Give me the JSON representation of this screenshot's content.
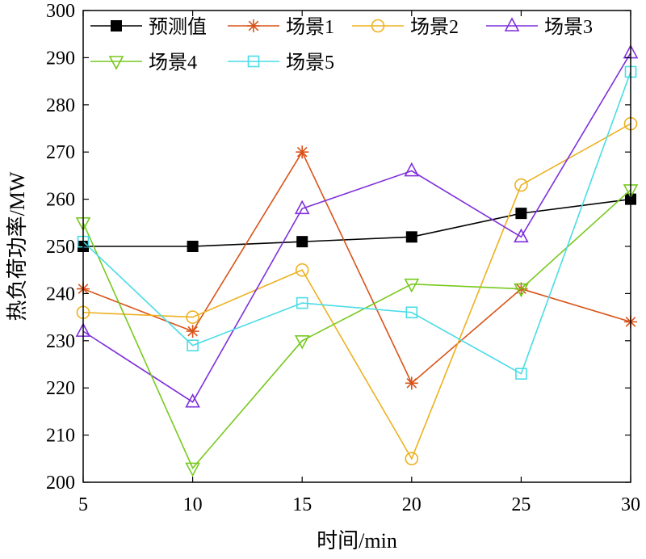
{
  "chart_data": {
    "type": "line",
    "xlabel": "时间/min",
    "ylabel": "热负荷功率/MW",
    "x": [
      5,
      10,
      15,
      20,
      25,
      30
    ],
    "xlim": [
      5,
      30
    ],
    "ylim": [
      200,
      300
    ],
    "xticks": [
      "5",
      "10",
      "15",
      "20",
      "25",
      "30"
    ],
    "yticks": [
      "200",
      "210",
      "220",
      "230",
      "240",
      "250",
      "260",
      "270",
      "280",
      "290",
      "300"
    ],
    "grid": false,
    "legend_position": "top",
    "series": [
      {
        "name": "预测值",
        "color": "#000000",
        "marker": "filled-square",
        "values": [
          250,
          250,
          251,
          252,
          257,
          260
        ]
      },
      {
        "name": "场景1",
        "color": "#D95319",
        "marker": "asterisk",
        "values": [
          241,
          232,
          270,
          221,
          241,
          234
        ]
      },
      {
        "name": "场景2",
        "color": "#EDB120",
        "marker": "circle",
        "values": [
          236,
          235,
          245,
          205,
          263,
          276
        ]
      },
      {
        "name": "场景3",
        "color": "#7E2FDB",
        "marker": "triangle-up",
        "values": [
          232,
          217,
          258,
          266,
          252,
          291
        ]
      },
      {
        "name": "场景4",
        "color": "#77C91E",
        "marker": "triangle-down",
        "values": [
          255,
          203,
          230,
          242,
          241,
          262
        ]
      },
      {
        "name": "场景5",
        "color": "#4ADCE6",
        "marker": "square",
        "values": [
          251,
          229,
          238,
          236,
          223,
          287
        ]
      }
    ]
  }
}
